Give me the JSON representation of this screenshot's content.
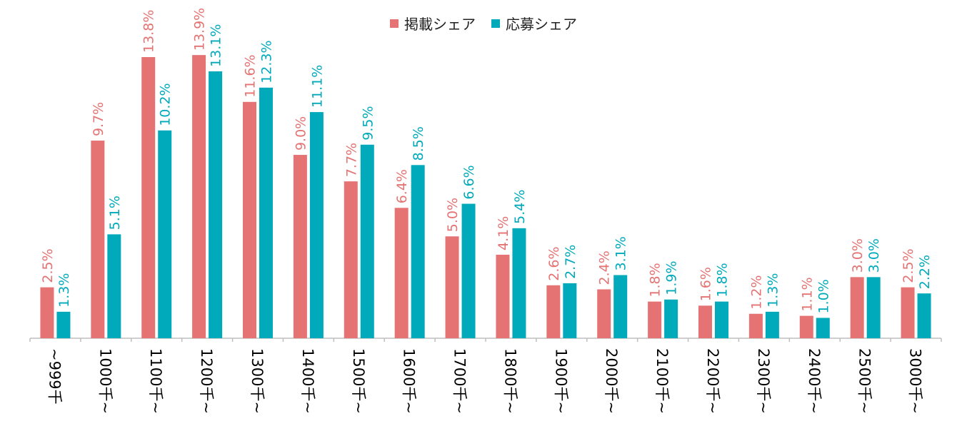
{
  "chart_data": {
    "type": "bar",
    "categories": [
      "~999千",
      "1000千~",
      "1100千~",
      "1200千~",
      "1300千~",
      "1400千~",
      "1500千~",
      "1600千~",
      "1700千~",
      "1800千~",
      "1900千~",
      "2000千~",
      "2100千~",
      "2200千~",
      "2300千~",
      "2400千~",
      "2500千~",
      "3000千~"
    ],
    "series": [
      {
        "name": "掲載シェア",
        "color": "#E57373",
        "values": [
          2.5,
          9.7,
          13.8,
          13.9,
          11.6,
          9.0,
          7.7,
          6.4,
          5.0,
          4.1,
          2.6,
          2.4,
          1.8,
          1.6,
          1.2,
          1.1,
          3.0,
          2.5
        ],
        "labels": [
          "2.5%",
          "9.7%",
          "13.8%",
          "13.9%",
          "11.6%",
          "9.0%",
          "7.7%",
          "6.4%",
          "5.0%",
          "4.1%",
          "2.6%",
          "2.4%",
          "1.8%",
          "1.6%",
          "1.2%",
          "1.1%",
          "3.0%",
          "2.5%"
        ]
      },
      {
        "name": "応募シェア",
        "color": "#00AABB",
        "values": [
          1.3,
          5.1,
          10.2,
          13.1,
          12.3,
          11.1,
          9.5,
          8.5,
          6.6,
          5.4,
          2.7,
          3.1,
          1.9,
          1.8,
          1.3,
          1.0,
          3.0,
          2.2
        ],
        "labels": [
          "1.3%",
          "5.1%",
          "10.2%",
          "13.1%",
          "12.3%",
          "11.1%",
          "9.5%",
          "8.5%",
          "6.6%",
          "5.4%",
          "2.7%",
          "3.1%",
          "1.9%",
          "1.8%",
          "1.3%",
          "1.0%",
          "3.0%",
          "2.2%"
        ]
      }
    ],
    "ylim": [
      0,
      14.5
    ],
    "grid": false,
    "legend_position": "top-center"
  }
}
